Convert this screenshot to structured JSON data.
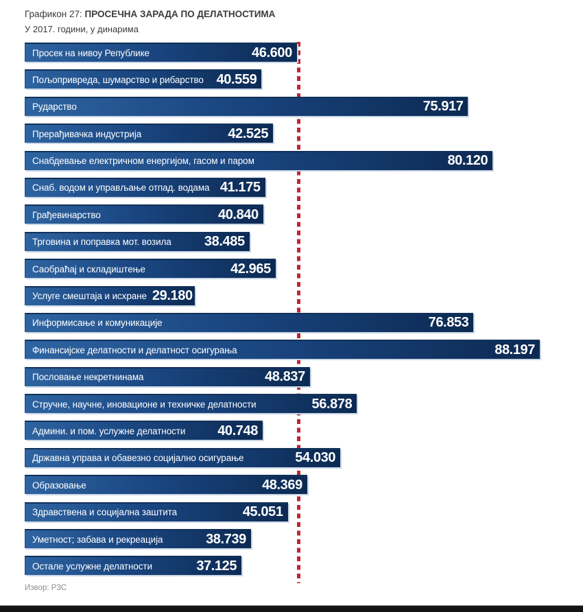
{
  "header": {
    "label": "Графикон 27:",
    "title": "ПРОСЕЧНА ЗАРАДА ПО ДЕЛАТНОСТИМА",
    "subtitle": "У 2017. години, у динарима"
  },
  "source": {
    "text": "Извор: РЗС"
  },
  "colors": {
    "bar_gradient_left": "#2e64a1",
    "bar_gradient_right": "#0c2a53",
    "bar_top_edge": "#123158",
    "bar_light_edge": "#c9d6e6",
    "reference_line": "#bf2630",
    "text_on_bar": "#ffffff",
    "title_text": "#3a3a3a",
    "source_text": "#8c8c8c"
  },
  "chart_data": {
    "type": "bar",
    "orientation": "horizontal",
    "title": "ПРОСЕЧНА ЗАРАДА ПО ДЕЛАТНОСТИМА",
    "subtitle": "У 2017. години, у динарима",
    "unit": "динари",
    "xlim": [
      0,
      88197
    ],
    "grid": false,
    "legend": false,
    "value_labels_position": "inside-end",
    "reference_line": {
      "value": 46600,
      "label": "46.600",
      "style": "vertical-dashed-red"
    },
    "bars": [
      {
        "label": "Просек на нивоу Републике",
        "value": 46600,
        "value_label": "46.600"
      },
      {
        "label": "Пољопривреда, шумарство и рибарство",
        "value": 40559,
        "value_label": "40.559"
      },
      {
        "label": "Рударство",
        "value": 75917,
        "value_label": "75.917"
      },
      {
        "label": "Прерађивачка индустрија",
        "value": 42525,
        "value_label": "42.525"
      },
      {
        "label": "Снабдевање електричном енергијом, гасом и паром",
        "value": 80120,
        "value_label": "80.120"
      },
      {
        "label": "Снаб. водом и управљање отпад. водама",
        "value": 41175,
        "value_label": "41.175"
      },
      {
        "label": "Грађевинарство",
        "value": 40840,
        "value_label": "40.840"
      },
      {
        "label": "Трговина и поправка мот. возила",
        "value": 38485,
        "value_label": "38.485"
      },
      {
        "label": "Саобраћај и складиштење",
        "value": 42965,
        "value_label": "42.965"
      },
      {
        "label": "Услуге смештаја и исхране",
        "value": 29180,
        "value_label": "29.180"
      },
      {
        "label": "Информисање и комуникације",
        "value": 76853,
        "value_label": "76.853"
      },
      {
        "label": "Финансијске делатности и делатност осигурања",
        "value": 88197,
        "value_label": "88.197"
      },
      {
        "label": "Пословање некретнинама",
        "value": 48837,
        "value_label": "48.837"
      },
      {
        "label": "Стручне, научне, иновационе и техничке делатности",
        "value": 56878,
        "value_label": "56.878"
      },
      {
        "label": "Админи. и пом. услужне делатности",
        "value": 40748,
        "value_label": "40.748"
      },
      {
        "label": "Државна управа и обавезно социјално осигурање",
        "value": 54030,
        "value_label": "54.030"
      },
      {
        "label": "Образовање",
        "value": 48369,
        "value_label": "48.369"
      },
      {
        "label": "Здравствена и социјална заштита",
        "value": 45051,
        "value_label": "45.051"
      },
      {
        "label": "Уметност; забава и рекреација",
        "value": 38739,
        "value_label": "38.739"
      },
      {
        "label": "Остале услужне делатности",
        "value": 37125,
        "value_label": "37.125"
      }
    ]
  }
}
